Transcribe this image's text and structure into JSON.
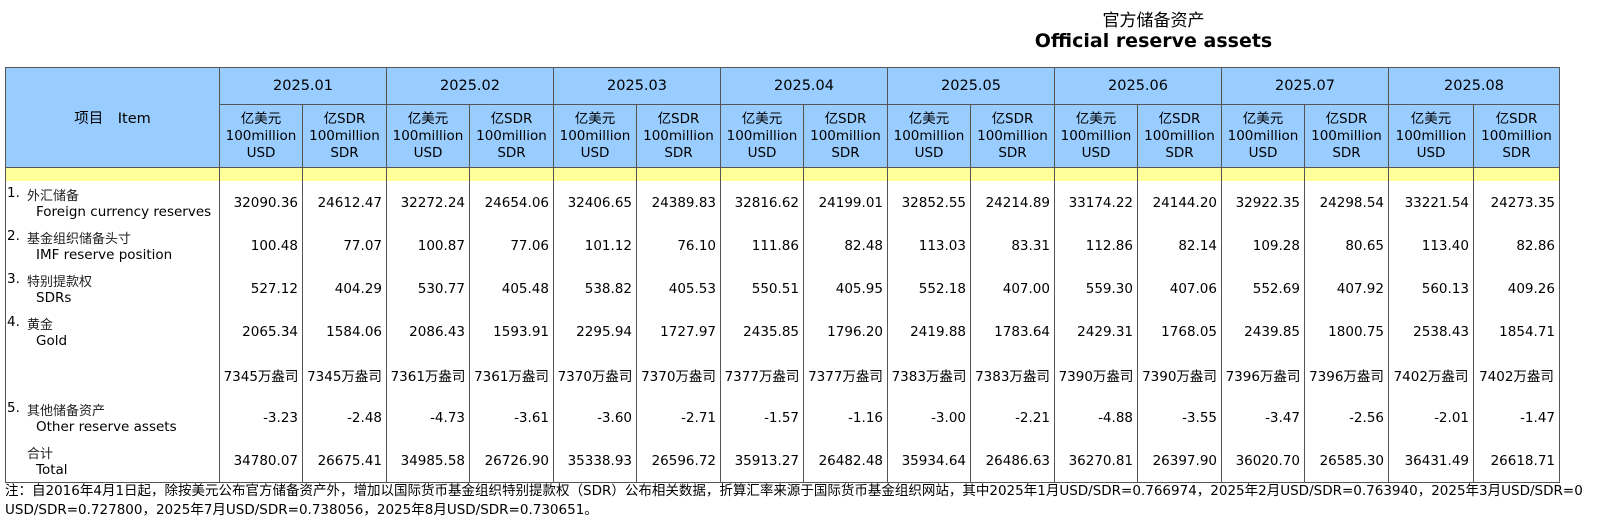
{
  "title": {
    "cn": "官方储备资产",
    "en": "Official reserve assets"
  },
  "header": {
    "item_label": "项目　Item",
    "months": [
      "2025.01",
      "2025.02",
      "2025.03",
      "2025.04",
      "2025.05",
      "2025.06",
      "2025.07",
      "2025.08"
    ],
    "usd_unit": [
      "亿美元",
      "100million",
      "USD"
    ],
    "sdr_unit": [
      "亿SDR",
      "100million",
      "SDR"
    ]
  },
  "rows": [
    {
      "num": "1.",
      "cn": "外汇储备",
      "en": "Foreign currency reserves",
      "values": [
        "32090.36",
        "24612.47",
        "32272.24",
        "24654.06",
        "32406.65",
        "24389.83",
        "32816.62",
        "24199.01",
        "32852.55",
        "24214.89",
        "33174.22",
        "24144.20",
        "32922.35",
        "24298.54",
        "33221.54",
        "24273.35"
      ]
    },
    {
      "num": "2.",
      "cn": "基金组织储备头寸",
      "en": "IMF reserve position",
      "values": [
        "100.48",
        "77.07",
        "100.87",
        "77.06",
        "101.12",
        "76.10",
        "111.86",
        "82.48",
        "113.03",
        "83.31",
        "112.86",
        "82.14",
        "109.28",
        "80.65",
        "113.40",
        "82.86"
      ]
    },
    {
      "num": "3.",
      "cn": "特别提款权",
      "en": "SDRs",
      "values": [
        "527.12",
        "404.29",
        "530.77",
        "405.48",
        "538.82",
        "405.53",
        "550.51",
        "405.95",
        "552.18",
        "407.00",
        "559.30",
        "407.06",
        "552.69",
        "407.92",
        "560.13",
        "409.26"
      ]
    },
    {
      "num": "4.",
      "cn": "黄金",
      "en": "Gold",
      "values": [
        "2065.34",
        "1584.06",
        "2086.43",
        "1593.91",
        "2295.94",
        "1727.97",
        "2435.85",
        "1796.20",
        "2419.88",
        "1783.64",
        "2429.31",
        "1768.05",
        "2439.85",
        "1800.75",
        "2538.43",
        "1854.71"
      ]
    },
    {
      "num": "",
      "cn": "",
      "en": "",
      "values": [
        "7345万盎司",
        "7345万盎司",
        "7361万盎司",
        "7361万盎司",
        "7370万盎司",
        "7370万盎司",
        "7377万盎司",
        "7377万盎司",
        "7383万盎司",
        "7383万盎司",
        "7390万盎司",
        "7390万盎司",
        "7396万盎司",
        "7396万盎司",
        "7402万盎司",
        "7402万盎司"
      ]
    },
    {
      "num": "5.",
      "cn": "其他储备资产",
      "en": "Other reserve assets",
      "values": [
        "-3.23",
        "-2.48",
        "-4.73",
        "-3.61",
        "-3.60",
        "-2.71",
        "-1.57",
        "-1.16",
        "-3.00",
        "-2.21",
        "-4.88",
        "-3.55",
        "-3.47",
        "-2.56",
        "-2.01",
        "-1.47"
      ]
    },
    {
      "num": "",
      "cn": "合计",
      "en": "Total",
      "values": [
        "34780.07",
        "26675.41",
        "34985.58",
        "26726.90",
        "35338.93",
        "26596.72",
        "35913.27",
        "26482.48",
        "35934.64",
        "26486.63",
        "36270.81",
        "26397.90",
        "36020.70",
        "26585.30",
        "36431.49",
        "26618.71"
      ]
    }
  ],
  "note": {
    "line1": "注：自2016年4月1日起，除按美元公布官方储备资产外，增加以国际货币基金组织特别提款权（SDR）公布相关数据，折算汇率来源于国际货币基金组织网站，其中2025年1月USD/SDR=0.766974，2025年2月USD/SDR=0.763940，2025年3月USD/SDR=0",
    "line2": "USD/SDR=0.727800，2025年7月USD/SDR=0.738056，2025年8月USD/SDR=0.730651。"
  }
}
